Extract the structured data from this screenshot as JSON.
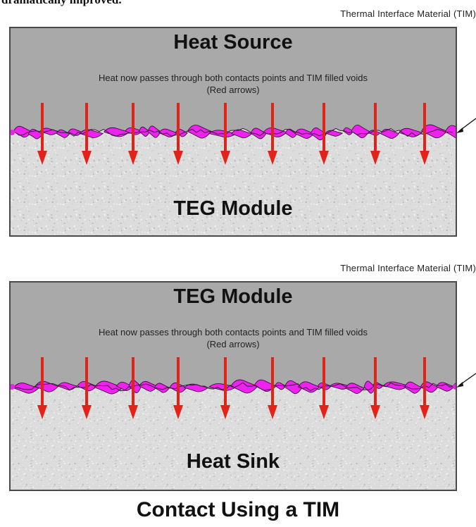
{
  "header_cut_text": "dramatically improved.",
  "panels": [
    {
      "tim_label": "Thermal Interface Material (TIM)",
      "top_label": "Heat Source",
      "note_line1": "Heat now passes through both contacts points and TIM filled voids",
      "note_line2": "(Red arrows)",
      "bottom_label": "TEG Module"
    },
    {
      "tim_label": "Thermal Interface Material (TIM)",
      "top_label": "TEG Module",
      "note_line1": "Heat now passes through both contacts points and TIM filled voids",
      "note_line2": "(Red arrows)",
      "bottom_label": "Heat Sink"
    }
  ],
  "caption": "Contact Using a TIM",
  "colors": {
    "top_block": "#a9a9a9",
    "bottom_block": "#dcdcdc",
    "tim": "#ee22ee",
    "arrow": "#e2231a"
  }
}
